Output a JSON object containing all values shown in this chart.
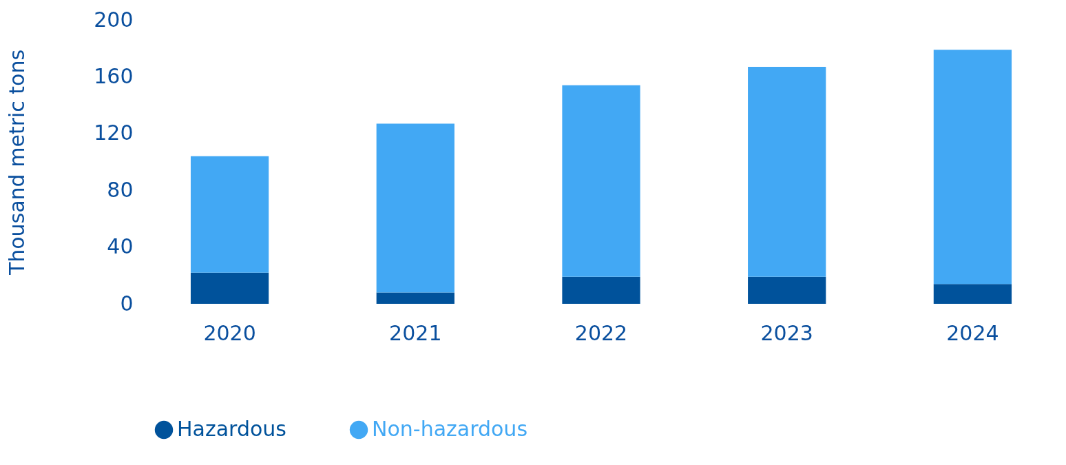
{
  "chart_data": {
    "type": "bar",
    "stacked": true,
    "ylabel": "Thousand metric tons",
    "categories": [
      "2020",
      "2021",
      "2022",
      "2023",
      "2024"
    ],
    "series": [
      {
        "name": "Hazardous",
        "color": "#00529b",
        "values": [
          22,
          8,
          19,
          19,
          14
        ]
      },
      {
        "name": "Non-hazardous",
        "color": "#42a8f4",
        "values": [
          82,
          119,
          135,
          148,
          165
        ]
      }
    ],
    "ylim": [
      0,
      200
    ],
    "yticks": [
      0,
      40,
      80,
      120,
      160,
      200
    ],
    "grid": false,
    "legend": "bottom"
  }
}
